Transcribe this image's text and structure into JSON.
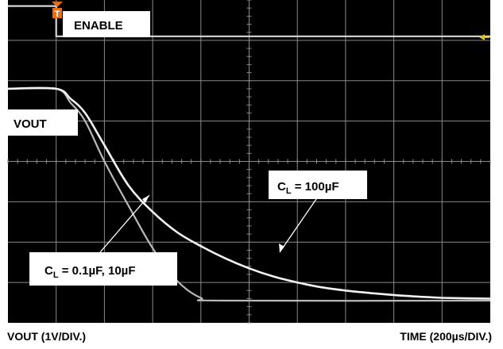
{
  "chart_data": {
    "type": "line",
    "xlabel": "TIME (200µs/DIV.)",
    "ylabel": "VOUT (1V/DIV.)",
    "x_divisions": 10,
    "y_divisions": 8,
    "x_unit_per_div": "200µs",
    "y_unit_per_div": "1V",
    "grid": true,
    "trigger_marker": "T",
    "annotations": {
      "enable": "ENABLE",
      "vout": "VOUT",
      "cl_large": "C",
      "cl_large_sub": "L",
      "cl_large_value": " = 100µF",
      "cl_small": "C",
      "cl_small_sub": "L",
      "cl_small_value": " = 0.1µF, 10µF"
    },
    "series": [
      {
        "name": "ENABLE",
        "x_div": [
          0,
          1.0,
          1.0,
          10
        ],
        "y_div": [
          7.85,
          7.85,
          7.1,
          7.1
        ]
      },
      {
        "name": "C_L = 100µF",
        "x_div": [
          0,
          1.0,
          1.3,
          1.6,
          2.0,
          2.5,
          3.0,
          3.5,
          4.0,
          4.5,
          5.0,
          5.5,
          6.0,
          6.5,
          7.0,
          7.5,
          8.0,
          8.5,
          9.0,
          10
        ],
        "y_div": [
          5.8,
          5.8,
          5.55,
          5.2,
          4.4,
          3.4,
          2.75,
          2.25,
          1.9,
          1.6,
          1.35,
          1.15,
          1.0,
          0.88,
          0.8,
          0.74,
          0.69,
          0.65,
          0.62,
          0.6
        ]
      },
      {
        "name": "C_L = 0.1µF, 10µF",
        "x_div": [
          0,
          1.0,
          1.3,
          1.6,
          2.0,
          2.5,
          3.0,
          3.5,
          4.0,
          4.5,
          10
        ],
        "y_div": [
          5.8,
          5.8,
          5.45,
          5.0,
          4.0,
          2.9,
          1.85,
          1.05,
          0.62,
          0.55,
          0.55
        ]
      }
    ]
  }
}
